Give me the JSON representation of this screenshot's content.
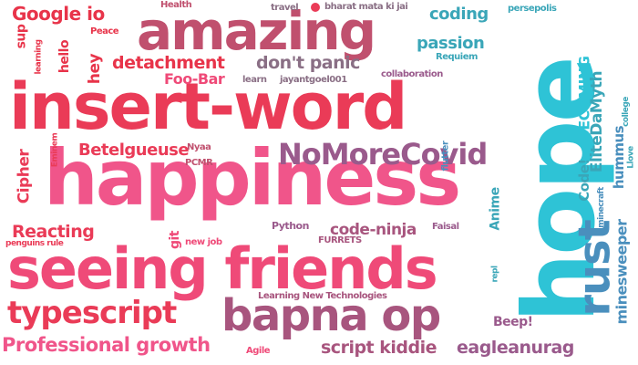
{
  "colors": {
    "red": "#e8344a",
    "crimson": "#ea3b57",
    "pink": "#ef4a78",
    "hotpink": "#f0558a",
    "rose": "#c0506e",
    "mauve": "#a8557e",
    "purple": "#9a5a8c",
    "blue": "#4a8fbd",
    "teal": "#3aa6b8",
    "cyan": "#2ec3d6",
    "grey": "#8a6f85"
  },
  "words": [
    {
      "id": "hope",
      "text": "hope"
    },
    {
      "id": "insert-word",
      "text": "insert-word"
    },
    {
      "id": "happiness",
      "text": "happiness"
    },
    {
      "id": "seeing-friends",
      "text": "seeing friends"
    },
    {
      "id": "amazing",
      "text": "amazing"
    },
    {
      "id": "bapna-op",
      "text": "bapna op"
    },
    {
      "id": "nomorecovid",
      "text": "NoMoreCovid"
    },
    {
      "id": "rust",
      "text": "rust"
    },
    {
      "id": "typescript",
      "text": "typescript"
    },
    {
      "id": "professional-growth",
      "text": "Professional growth"
    },
    {
      "id": "google-io",
      "text": "Google io"
    },
    {
      "id": "detachment",
      "text": "detachment"
    },
    {
      "id": "dont-panic",
      "text": "don't panic"
    },
    {
      "id": "foo-bar",
      "text": "Foo-Bar"
    },
    {
      "id": "betelgueuse",
      "text": "Betelgueuse"
    },
    {
      "id": "reacting",
      "text": "Reacting"
    },
    {
      "id": "code-ninja",
      "text": "code-ninja"
    },
    {
      "id": "script-kiddie",
      "text": "script kiddie"
    },
    {
      "id": "eagleanurag",
      "text": "eagleanurag"
    },
    {
      "id": "coding",
      "text": "coding"
    },
    {
      "id": "passion",
      "text": "passion"
    },
    {
      "id": "elitedamyth",
      "text": "EliteDaMyth"
    },
    {
      "id": "becoming",
      "text": "BECOMING"
    },
    {
      "id": "hummus",
      "text": "hummus"
    },
    {
      "id": "minesweeper",
      "text": "minesweeper"
    },
    {
      "id": "code",
      "text": "Code!"
    },
    {
      "id": "anime",
      "text": "Anime"
    },
    {
      "id": "beep",
      "text": "Beep!"
    },
    {
      "id": "cipher",
      "text": "Cipher"
    },
    {
      "id": "sup",
      "text": "sup"
    },
    {
      "id": "hello",
      "text": "hello"
    },
    {
      "id": "hey",
      "text": "hey"
    },
    {
      "id": "learning",
      "text": "learning"
    },
    {
      "id": "peace",
      "text": "Peace"
    },
    {
      "id": "health",
      "text": "Health"
    },
    {
      "id": "travel",
      "text": "travel"
    },
    {
      "id": "bharat-mata-ki-jai",
      "text": "bharat mata ki jai"
    },
    {
      "id": "persepolis",
      "text": "persepolis"
    },
    {
      "id": "requiem",
      "text": "Requiem"
    },
    {
      "id": "collaboration",
      "text": "collaboration"
    },
    {
      "id": "learn",
      "text": "learn"
    },
    {
      "id": "jayantgoel001",
      "text": "jayantgoel001"
    },
    {
      "id": "eminem",
      "text": "Eminem"
    },
    {
      "id": "nyaa",
      "text": "Nyaa"
    },
    {
      "id": "pcmr",
      "text": "PCMR"
    },
    {
      "id": "flutter",
      "text": "flutter"
    },
    {
      "id": "minecraft",
      "text": "minecraft"
    },
    {
      "id": "college",
      "text": "college"
    },
    {
      "id": "llove",
      "text": "Llove"
    },
    {
      "id": "git",
      "text": "git"
    },
    {
      "id": "new-job",
      "text": "new job"
    },
    {
      "id": "python",
      "text": "Python"
    },
    {
      "id": "furrets",
      "text": "FURRETS"
    },
    {
      "id": "faisal",
      "text": "Faisal"
    },
    {
      "id": "repl",
      "text": "repl"
    },
    {
      "id": "penguins-rule",
      "text": "penguins rule"
    },
    {
      "id": "learning-new-technologies",
      "text": "Learning New Technologies"
    },
    {
      "id": "agile",
      "text": "Agile"
    }
  ]
}
